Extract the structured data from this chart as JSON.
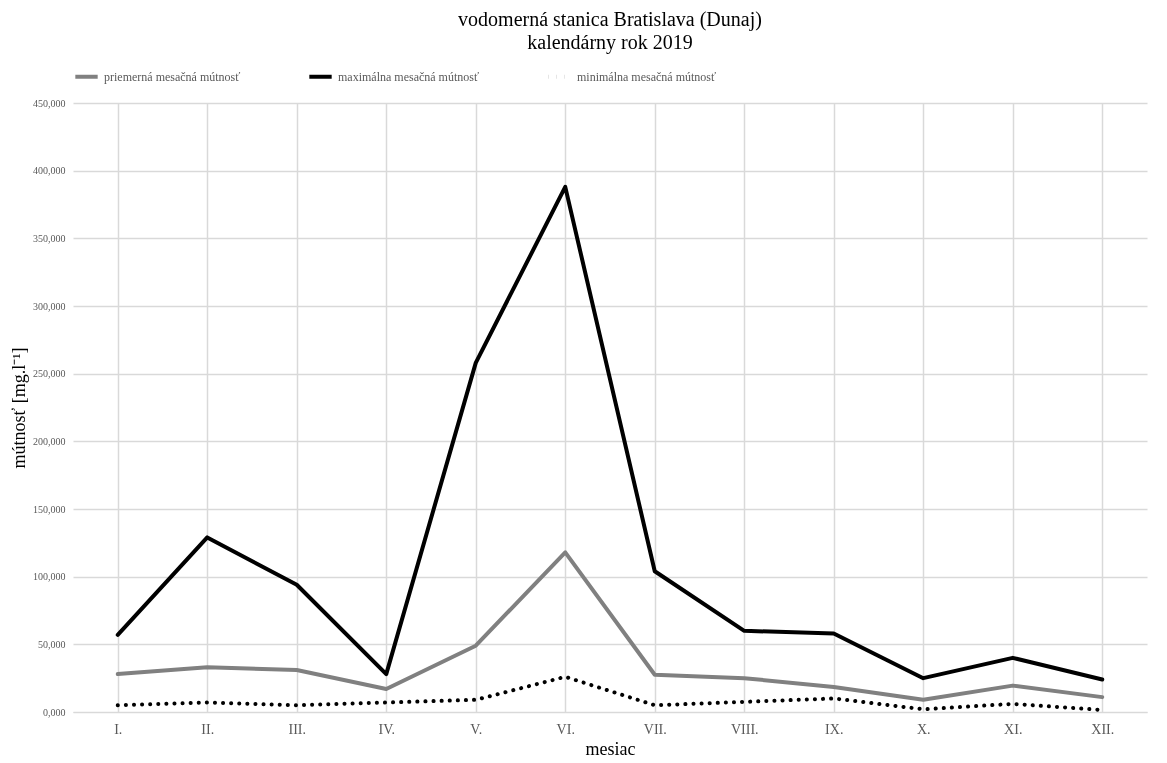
{
  "chart_data": {
    "type": "line",
    "title": "vodomerná stanica Bratislava (Dunaj)",
    "subtitle": "kalendárny rok 2019",
    "xlabel": "mesiac",
    "ylabel": "mútnosť [mg.l⁻¹]",
    "categories": [
      "I.",
      "II.",
      "III.",
      "IV.",
      "V.",
      "VI.",
      "VII.",
      "VIII.",
      "IX.",
      "X.",
      "XI.",
      "XII."
    ],
    "series": [
      {
        "name": "priemerná mesačná mútnosť",
        "color": "#808080",
        "line_style": "solid",
        "values": [
          28000,
          33000,
          31000,
          17000,
          49000,
          118000,
          27500,
          25000,
          18500,
          9000,
          19500,
          11000
        ]
      },
      {
        "name": "maximálna mesačná mútnosť",
        "color": "#000000",
        "line_style": "solid",
        "values": [
          57000,
          129000,
          94000,
          28000,
          258000,
          388000,
          104000,
          60000,
          58000,
          25000,
          40000,
          24000
        ]
      },
      {
        "name": "minimálna mesačná mútnosť",
        "color": "#000000",
        "line_style": "dotted",
        "values": [
          5000,
          7000,
          5000,
          7000,
          9000,
          26000,
          5000,
          7500,
          10000,
          2000,
          6000,
          1500
        ]
      }
    ],
    "ylim": [
      0,
      450000
    ],
    "yticks": [
      {
        "value": 0,
        "label": "0,000"
      },
      {
        "value": 50000,
        "label": "50,000"
      },
      {
        "value": 100000,
        "label": "100,000"
      },
      {
        "value": 150000,
        "label": "150,000"
      },
      {
        "value": 200000,
        "label": "200,000"
      },
      {
        "value": 250000,
        "label": "250,000"
      },
      {
        "value": 300000,
        "label": "300,000"
      },
      {
        "value": 350000,
        "label": "350,000"
      },
      {
        "value": 400000,
        "label": "400,000"
      },
      {
        "value": 450000,
        "label": "450,000"
      }
    ],
    "grid": true,
    "legend": "top"
  }
}
